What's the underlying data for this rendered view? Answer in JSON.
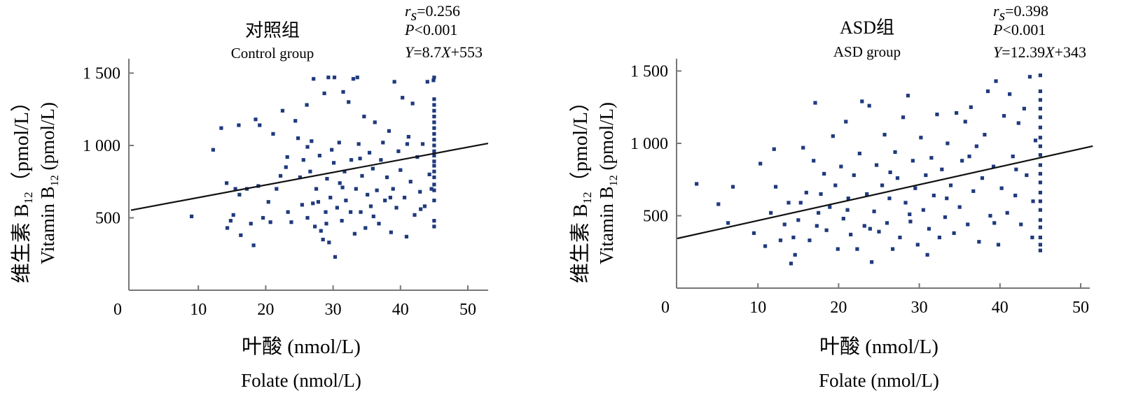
{
  "chart_data": [
    {
      "type": "scatter",
      "title_cn": "对照组",
      "title_en": "Control group",
      "stats": {
        "rs_symbol": "r",
        "rs_sub": "s",
        "rs_value": "=0.256",
        "p_symbol": "P",
        "p_value": "<0.001",
        "eq_y": "Y",
        "eq_mid": "=8.7",
        "eq_x": "X",
        "eq_end": "+553"
      },
      "xlabel_cn": "叶酸 (nmol/L)",
      "xlabel_en": "Folate (nmol/L)",
      "ylabel_cn": "维生素 B",
      "ylabel_cn_sub": "12",
      "ylabel_cn_unit": "（pmol/L）",
      "ylabel_en": "Vitamin B",
      "ylabel_en_sub": "12",
      "ylabel_en_unit": " (pmol/L)",
      "xlim": [
        0,
        53
      ],
      "ylim": [
        0,
        1580
      ],
      "xticks": [
        0,
        10,
        20,
        30,
        40,
        50
      ],
      "xtick_labels": [
        "0",
        "10",
        "20",
        "30",
        "40",
        "50"
      ],
      "yticks": [
        500,
        1000,
        1500
      ],
      "ytick_labels": [
        "500",
        "1 000",
        "1 500"
      ],
      "regression": {
        "slope": 8.7,
        "intercept": 553
      },
      "marker_color": "#1f3a7d",
      "line_color": "#111111",
      "points": [
        [
          9,
          510
        ],
        [
          12.2,
          970
        ],
        [
          13.4,
          1120
        ],
        [
          14.2,
          740
        ],
        [
          14.3,
          430
        ],
        [
          14.8,
          480
        ],
        [
          15.2,
          520
        ],
        [
          15.5,
          700
        ],
        [
          16,
          1140
        ],
        [
          16.1,
          660
        ],
        [
          16.3,
          380
        ],
        [
          17.2,
          700
        ],
        [
          17.8,
          460
        ],
        [
          18.2,
          310
        ],
        [
          18.5,
          1180
        ],
        [
          18.9,
          720
        ],
        [
          19.1,
          1140
        ],
        [
          19.6,
          500
        ],
        [
          20.4,
          610
        ],
        [
          20.7,
          470
        ],
        [
          21.1,
          1080
        ],
        [
          21.6,
          700
        ],
        [
          22.2,
          790
        ],
        [
          22.5,
          1240
        ],
        [
          23.0,
          850
        ],
        [
          23.2,
          920
        ],
        [
          23.3,
          540
        ],
        [
          23.8,
          470
        ],
        [
          24.4,
          1170
        ],
        [
          24.8,
          1050
        ],
        [
          25.1,
          780
        ],
        [
          25.4,
          590
        ],
        [
          25.6,
          900
        ],
        [
          26.1,
          1280
        ],
        [
          26.2,
          500
        ],
        [
          26.6,
          820
        ],
        [
          26.8,
          1030
        ],
        [
          27.1,
          1460
        ],
        [
          27.3,
          440
        ],
        [
          27.5,
          700
        ],
        [
          27.8,
          610
        ],
        [
          28.0,
          930
        ],
        [
          28.2,
          410
        ],
        [
          28.5,
          350
        ],
        [
          28.7,
          1360
        ],
        [
          28.9,
          540
        ],
        [
          29.1,
          770
        ],
        [
          29.3,
          1470
        ],
        [
          29.4,
          330
        ],
        [
          29.6,
          640
        ],
        [
          29.8,
          970
        ],
        [
          30.1,
          880
        ],
        [
          30.2,
          1470
        ],
        [
          30.3,
          230
        ],
        [
          30.6,
          570
        ],
        [
          30.9,
          1020
        ],
        [
          31.0,
          740
        ],
        [
          31.3,
          480
        ],
        [
          31.5,
          1370
        ],
        [
          31.7,
          820
        ],
        [
          31.9,
          620
        ],
        [
          32.3,
          1300
        ],
        [
          32.7,
          900
        ],
        [
          33.0,
          1460
        ],
        [
          33.2,
          390
        ],
        [
          33.4,
          700
        ],
        [
          33.6,
          1470
        ],
        [
          33.8,
          1010
        ],
        [
          34.1,
          540
        ],
        [
          34.3,
          790
        ],
        [
          34.6,
          1200
        ],
        [
          34.8,
          430
        ],
        [
          35.1,
          660
        ],
        [
          35.4,
          950
        ],
        [
          35.6,
          580
        ],
        [
          35.9,
          840
        ],
        [
          36.2,
          1160
        ],
        [
          36.5,
          690
        ],
        [
          36.8,
          460
        ],
        [
          37.1,
          900
        ],
        [
          37.4,
          1020
        ],
        [
          37.7,
          620
        ],
        [
          38.0,
          780
        ],
        [
          38.3,
          1100
        ],
        [
          38.6,
          400
        ],
        [
          38.9,
          700
        ],
        [
          39.1,
          1440
        ],
        [
          39.4,
          570
        ],
        [
          39.7,
          960
        ],
        [
          40.0,
          830
        ],
        [
          40.3,
          1330
        ],
        [
          40.6,
          640
        ],
        [
          40.9,
          370
        ],
        [
          41.2,
          1060
        ],
        [
          41.5,
          750
        ],
        [
          41.8,
          1290
        ],
        [
          42.1,
          520
        ],
        [
          42.5,
          920
        ],
        [
          42.9,
          680
        ],
        [
          43.3,
          1010
        ],
        [
          43.6,
          580
        ],
        [
          44.0,
          1440
        ],
        [
          44.3,
          800
        ],
        [
          44.6,
          700
        ],
        [
          44.9,
          1450
        ],
        [
          45,
          440
        ],
        [
          45,
          480
        ],
        [
          45,
          620
        ],
        [
          45,
          690
        ],
        [
          45,
          730
        ],
        [
          45,
          780
        ],
        [
          45,
          820
        ],
        [
          45,
          860
        ],
        [
          45,
          890
        ],
        [
          45,
          930
        ],
        [
          45,
          960
        ],
        [
          45,
          1000
        ],
        [
          45,
          1040
        ],
        [
          45,
          1080
        ],
        [
          45,
          1120
        ],
        [
          45,
          1160
        ],
        [
          45,
          1200
        ],
        [
          45,
          1240
        ],
        [
          45,
          1280
        ],
        [
          45,
          1320
        ],
        [
          45,
          1470
        ],
        [
          26.2,
          990
        ],
        [
          27.0,
          600
        ],
        [
          29.0,
          460
        ],
        [
          31.4,
          710
        ],
        [
          32.6,
          540
        ],
        [
          34.0,
          910
        ],
        [
          36.0,
          510
        ],
        [
          38.5,
          640
        ],
        [
          41.0,
          1010
        ],
        [
          43.0,
          560
        ]
      ]
    },
    {
      "type": "scatter",
      "title_cn": "ASD组",
      "title_en": "ASD group",
      "stats": {
        "rs_symbol": "r",
        "rs_sub": "s",
        "rs_value": "=0.398",
        "p_symbol": "P",
        "p_value": "<0.001",
        "eq_y": "Y",
        "eq_mid": "=12.39",
        "eq_x": "X",
        "eq_end": "+343"
      },
      "xlabel_cn": "叶酸 (nmol/L)",
      "xlabel_en": "Folate (nmol/L)",
      "ylabel_cn": "维生素 B",
      "ylabel_cn_sub": "12",
      "ylabel_cn_unit": "（pmol/L）",
      "ylabel_en": "Vitamin B",
      "ylabel_en_sub": "12",
      "ylabel_en_unit": " (pmol/L)",
      "xlim": [
        0,
        51.5
      ],
      "ylim": [
        0,
        1580
      ],
      "xticks": [
        0,
        10,
        20,
        30,
        40,
        50
      ],
      "xtick_labels": [
        "0",
        "10",
        "20",
        "30",
        "40",
        "50"
      ],
      "yticks": [
        500,
        1000,
        1500
      ],
      "ytick_labels": [
        "500",
        "1 000",
        "1 500"
      ],
      "regression": {
        "slope": 12.39,
        "intercept": 343
      },
      "marker_color": "#1f3a7d",
      "line_color": "#111111",
      "points": [
        [
          2.4,
          720
        ],
        [
          5.1,
          580
        ],
        [
          6.3,
          450
        ],
        [
          6.9,
          700
        ],
        [
          9.5,
          380
        ],
        [
          10.3,
          860
        ],
        [
          10.9,
          290
        ],
        [
          11.6,
          520
        ],
        [
          12.0,
          960
        ],
        [
          12.2,
          700
        ],
        [
          12.8,
          330
        ],
        [
          13.3,
          440
        ],
        [
          13.8,
          590
        ],
        [
          14.1,
          170
        ],
        [
          14.4,
          350
        ],
        [
          15.0,
          470
        ],
        [
          15.3,
          590
        ],
        [
          15.6,
          970
        ],
        [
          16.0,
          660
        ],
        [
          16.4,
          330
        ],
        [
          16.9,
          880
        ],
        [
          17.1,
          1280
        ],
        [
          17.5,
          520
        ],
        [
          17.8,
          650
        ],
        [
          18.2,
          790
        ],
        [
          18.5,
          400
        ],
        [
          18.9,
          560
        ],
        [
          19.3,
          1050
        ],
        [
          19.6,
          710
        ],
        [
          19.9,
          270
        ],
        [
          20.3,
          840
        ],
        [
          20.6,
          480
        ],
        [
          20.9,
          1150
        ],
        [
          21.2,
          620
        ],
        [
          21.5,
          370
        ],
        [
          21.9,
          780
        ],
        [
          22.3,
          270
        ],
        [
          22.6,
          930
        ],
        [
          22.9,
          1290
        ],
        [
          23.2,
          430
        ],
        [
          23.5,
          650
        ],
        [
          23.8,
          1260
        ],
        [
          24.1,
          180
        ],
        [
          24.4,
          530
        ],
        [
          24.7,
          850
        ],
        [
          25.0,
          390
        ],
        [
          25.4,
          710
        ],
        [
          25.7,
          1060
        ],
        [
          26.0,
          450
        ],
        [
          26.3,
          620
        ],
        [
          26.7,
          270
        ],
        [
          27.0,
          940
        ],
        [
          27.3,
          760
        ],
        [
          27.6,
          350
        ],
        [
          28.0,
          1180
        ],
        [
          28.3,
          590
        ],
        [
          28.6,
          1330
        ],
        [
          28.9,
          460
        ],
        [
          29.2,
          880
        ],
        [
          29.5,
          690
        ],
        [
          29.8,
          300
        ],
        [
          30.2,
          1040
        ],
        [
          30.5,
          540
        ],
        [
          30.8,
          780
        ],
        [
          31.2,
          410
        ],
        [
          31.5,
          900
        ],
        [
          31.8,
          640
        ],
        [
          32.2,
          1200
        ],
        [
          32.5,
          350
        ],
        [
          32.8,
          820
        ],
        [
          33.2,
          490
        ],
        [
          33.5,
          1000
        ],
        [
          33.9,
          710
        ],
        [
          34.3,
          380
        ],
        [
          34.6,
          1210
        ],
        [
          35.0,
          560
        ],
        [
          35.3,
          880
        ],
        [
          35.7,
          1150
        ],
        [
          36.0,
          440
        ],
        [
          36.4,
          1250
        ],
        [
          36.7,
          670
        ],
        [
          37.1,
          980
        ],
        [
          37.4,
          320
        ],
        [
          37.8,
          760
        ],
        [
          38.1,
          1060
        ],
        [
          38.5,
          1360
        ],
        [
          38.8,
          500
        ],
        [
          39.2,
          840
        ],
        [
          39.5,
          1430
        ],
        [
          39.8,
          300
        ],
        [
          40.2,
          690
        ],
        [
          40.5,
          1190
        ],
        [
          40.9,
          520
        ],
        [
          41.2,
          1340
        ],
        [
          41.6,
          910
        ],
        [
          41.9,
          640
        ],
        [
          42.3,
          1140
        ],
        [
          42.6,
          440
        ],
        [
          43.0,
          1240
        ],
        [
          43.3,
          780
        ],
        [
          43.7,
          1460
        ],
        [
          44.1,
          600
        ],
        [
          44.4,
          1020
        ],
        [
          45,
          260
        ],
        [
          45,
          300
        ],
        [
          45,
          350
        ],
        [
          45,
          420
        ],
        [
          45,
          470
        ],
        [
          45,
          540
        ],
        [
          45,
          600
        ],
        [
          45,
          660
        ],
        [
          45,
          730
        ],
        [
          45,
          790
        ],
        [
          45,
          850
        ],
        [
          45,
          920
        ],
        [
          45,
          980
        ],
        [
          45,
          1040
        ],
        [
          45,
          1110
        ],
        [
          45,
          1180
        ],
        [
          45,
          1240
        ],
        [
          45,
          1300
        ],
        [
          45,
          1360
        ],
        [
          45,
          1470
        ],
        [
          14.6,
          230
        ],
        [
          17.3,
          430
        ],
        [
          21.1,
          540
        ],
        [
          23.9,
          410
        ],
        [
          26.4,
          800
        ],
        [
          28.8,
          510
        ],
        [
          31.0,
          230
        ],
        [
          33.4,
          620
        ],
        [
          36.2,
          910
        ],
        [
          39.3,
          450
        ],
        [
          42.0,
          820
        ],
        [
          44.0,
          350
        ]
      ]
    }
  ]
}
